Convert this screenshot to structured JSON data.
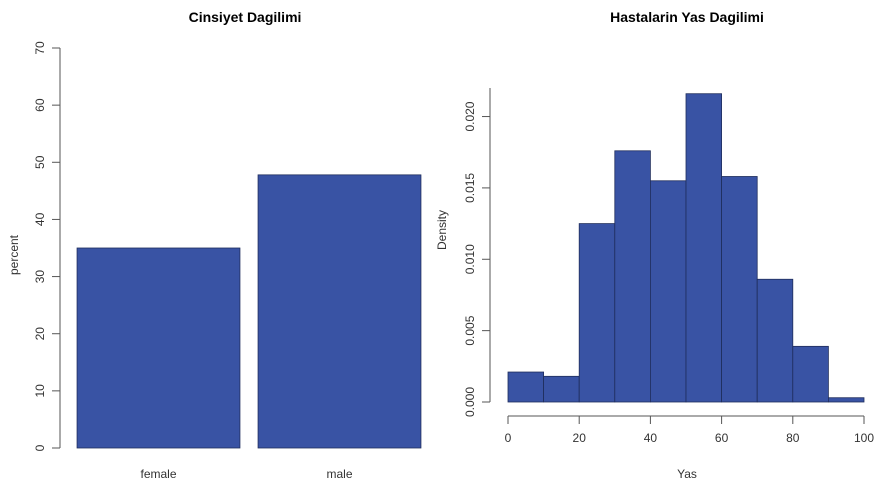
{
  "colors": {
    "bar_fill": "#3953a4",
    "bar_stroke": "#1f2d5c"
  },
  "chart_data": [
    {
      "type": "bar",
      "title": "Cinsiyet Dagilimi",
      "xlabel": "",
      "ylabel": "percent",
      "categories": [
        "female",
        "male"
      ],
      "values": [
        35,
        47.8
      ],
      "ylim": [
        0,
        70
      ],
      "yticks": [
        "0",
        "10",
        "20",
        "30",
        "40",
        "50",
        "60",
        "70"
      ],
      "grid": false
    },
    {
      "type": "bar",
      "title": "Hastalarin Yas Dagilimi",
      "xlabel": "Yas",
      "ylabel": "Density",
      "bins": [
        [
          0,
          10
        ],
        [
          10,
          20
        ],
        [
          20,
          30
        ],
        [
          30,
          40
        ],
        [
          40,
          50
        ],
        [
          50,
          60
        ],
        [
          60,
          70
        ],
        [
          70,
          80
        ],
        [
          80,
          90
        ],
        [
          90,
          100
        ]
      ],
      "values": [
        0.0021,
        0.0018,
        0.0125,
        0.0176,
        0.0155,
        0.0216,
        0.0158,
        0.0086,
        0.0039,
        0.0003
      ],
      "xlim": [
        0,
        100
      ],
      "ylim": [
        0,
        0.022
      ],
      "xticks": [
        "0",
        "20",
        "40",
        "60",
        "80",
        "100"
      ],
      "yticks": [
        "0.000",
        "0.005",
        "0.010",
        "0.015",
        "0.020"
      ],
      "grid": false
    }
  ]
}
